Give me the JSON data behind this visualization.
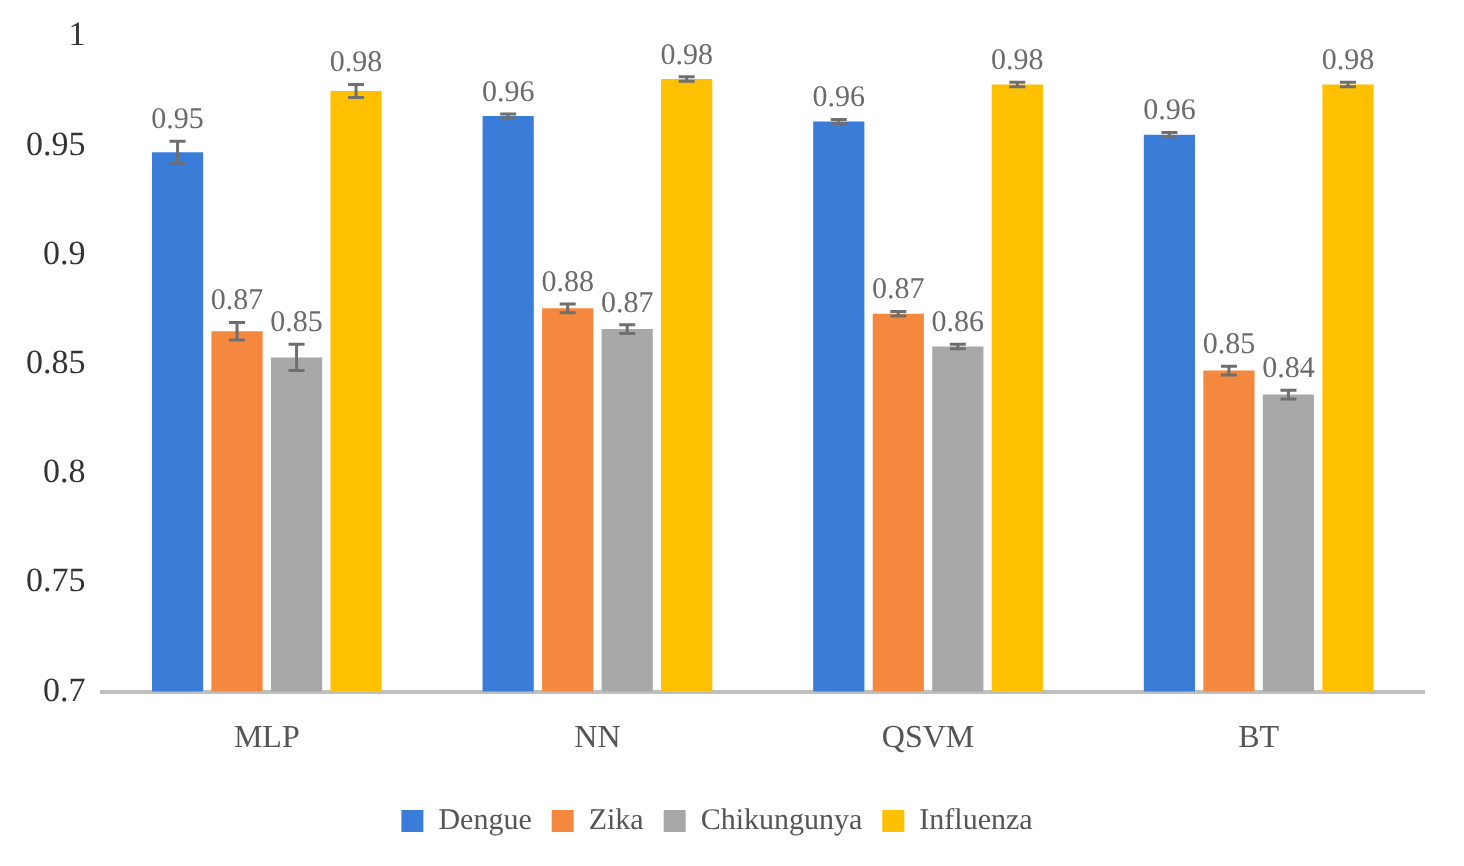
{
  "chart_data": {
    "type": "bar",
    "categories": [
      "MLP",
      "NN",
      "QSVM",
      "BT"
    ],
    "series": [
      {
        "name": "Dengue",
        "color": "#3a7dd8",
        "values": [
          0.947,
          0.9635,
          0.961,
          0.955
        ],
        "errors": [
          0.005,
          0.001,
          0.001,
          0.001
        ],
        "value_labels": [
          "0.95",
          "0.96",
          "0.96",
          "0.96"
        ]
      },
      {
        "name": "Zika",
        "color": "#f5883f",
        "values": [
          0.865,
          0.8755,
          0.873,
          0.847
        ],
        "errors": [
          0.004,
          0.002,
          0.001,
          0.002
        ],
        "value_labels": [
          "0.87",
          "0.88",
          "0.87",
          "0.85"
        ]
      },
      {
        "name": "Chikungunya",
        "color": "#a8a8a8",
        "values": [
          0.853,
          0.866,
          0.858,
          0.836
        ],
        "errors": [
          0.006,
          0.002,
          0.001,
          0.002
        ],
        "value_labels": [
          "0.85",
          "0.87",
          "0.86",
          "0.84"
        ]
      },
      {
        "name": "Influenza",
        "color": "#ffc000",
        "values": [
          0.975,
          0.9805,
          0.978,
          0.978
        ],
        "errors": [
          0.003,
          0.001,
          0.001,
          0.001
        ],
        "value_labels": [
          "0.98",
          "0.98",
          "0.98",
          "0.98"
        ]
      }
    ],
    "ylim": [
      0.7,
      1
    ],
    "yticks": [
      0.7,
      0.75,
      0.8,
      0.85,
      0.9,
      0.95,
      1
    ],
    "grid": false,
    "legend": "bottom"
  }
}
